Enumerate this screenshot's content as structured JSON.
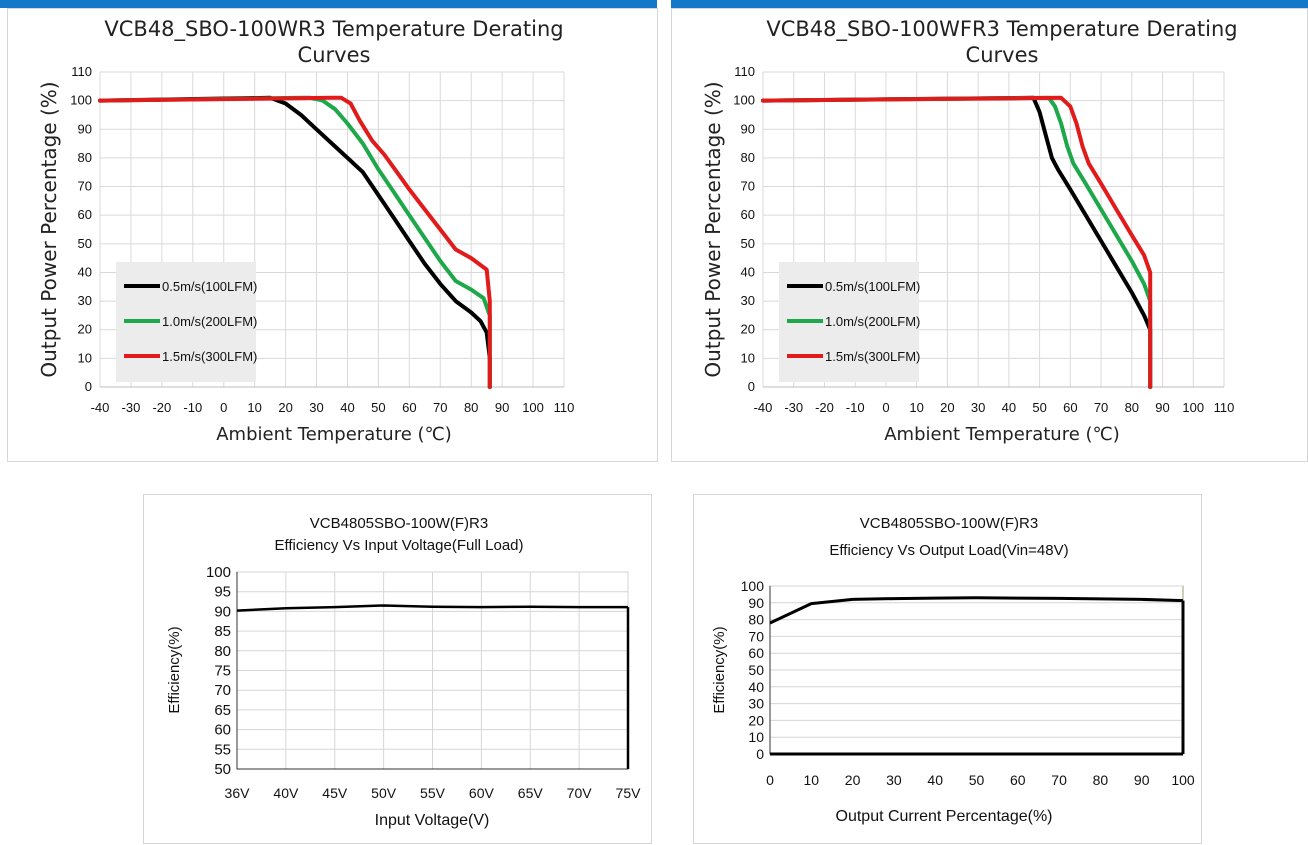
{
  "page": {
    "accent_color": "#1478c8"
  },
  "chart_data": [
    {
      "type": "line",
      "title": "VCB48_SBO-100WR3 Temperature Derating Curves",
      "title_lines": [
        "VCB48_SBO-100WR3 Temperature Derating",
        "Curves"
      ],
      "xlabel": "Ambient Temperature (℃)",
      "ylabel": "Output Power Percentage (%)",
      "xlim": [
        -40,
        110
      ],
      "ylim": [
        0,
        110
      ],
      "xticks": [
        -40,
        -30,
        -20,
        -10,
        0,
        10,
        20,
        30,
        40,
        50,
        60,
        70,
        80,
        90,
        100,
        110
      ],
      "yticks": [
        0,
        10,
        20,
        30,
        40,
        50,
        60,
        70,
        80,
        90,
        100,
        110
      ],
      "grid": true,
      "legend": "bottom-left",
      "series": [
        {
          "name": "0.5m/s(100LFM)",
          "color": "#000000",
          "x": [
            -40,
            15,
            20,
            25,
            30,
            35,
            40,
            45,
            50,
            55,
            60,
            65,
            70,
            75,
            80,
            83,
            85,
            86,
            86
          ],
          "y": [
            100,
            101,
            99,
            95,
            90,
            85,
            80,
            75,
            67,
            59,
            51,
            43,
            36,
            30,
            26,
            23,
            19,
            10,
            0
          ]
        },
        {
          "name": "1.0m/s(200LFM)",
          "color": "#1ea84a",
          "x": [
            -40,
            25,
            28,
            32,
            36,
            40,
            45,
            50,
            55,
            60,
            65,
            70,
            75,
            80,
            84,
            86,
            86
          ],
          "y": [
            100,
            101,
            101,
            100,
            97,
            92,
            85,
            76,
            68,
            60,
            52,
            44,
            37,
            34,
            31,
            25,
            0
          ]
        },
        {
          "name": "1.5m/s(300LFM)",
          "color": "#e11b1b",
          "x": [
            -40,
            35,
            38,
            41,
            44,
            48,
            52,
            56,
            60,
            65,
            70,
            75,
            80,
            85,
            86,
            86
          ],
          "y": [
            100,
            101,
            101,
            99,
            93,
            86,
            81,
            75,
            69,
            62,
            55,
            48,
            45,
            41,
            30,
            0
          ]
        }
      ]
    },
    {
      "type": "line",
      "title": "VCB48_SBO-100WFR3 Temperature Derating Curves",
      "title_lines": [
        "VCB48_SBO-100WFR3 Temperature Derating",
        "Curves"
      ],
      "xlabel": "Ambient Temperature (℃)",
      "ylabel": "Output Power Percentage (%)",
      "xlim": [
        -40,
        110
      ],
      "ylim": [
        0,
        110
      ],
      "xticks": [
        -40,
        -30,
        -20,
        -10,
        0,
        10,
        20,
        30,
        40,
        50,
        60,
        70,
        80,
        90,
        100,
        110
      ],
      "yticks": [
        0,
        10,
        20,
        30,
        40,
        50,
        60,
        70,
        80,
        90,
        100,
        110
      ],
      "grid": true,
      "legend": "bottom-left",
      "series": [
        {
          "name": "0.5m/s(100LFM)",
          "color": "#000000",
          "x": [
            -40,
            48,
            50,
            52,
            54,
            56,
            60,
            65,
            70,
            75,
            80,
            84,
            86,
            86
          ],
          "y": [
            100,
            101,
            96,
            88,
            80,
            76,
            69,
            60,
            51,
            42,
            33,
            25,
            20,
            0
          ]
        },
        {
          "name": "1.0m/s(200LFM)",
          "color": "#1ea84a",
          "x": [
            -40,
            53,
            55,
            57,
            59,
            61,
            65,
            70,
            75,
            80,
            84,
            86,
            86
          ],
          "y": [
            100,
            101,
            98,
            92,
            84,
            78,
            71,
            62,
            53,
            44,
            36,
            30,
            0
          ]
        },
        {
          "name": "1.5m/s(300LFM)",
          "color": "#e11b1b",
          "x": [
            -40,
            57,
            60,
            62,
            64,
            66,
            70,
            75,
            80,
            84,
            86,
            86
          ],
          "y": [
            100,
            101,
            98,
            92,
            84,
            78,
            71,
            62,
            53,
            46,
            40,
            0
          ]
        }
      ]
    },
    {
      "type": "line",
      "title": "VCB4805SBO-100W(F)R3",
      "subtitle": "Efficiency Vs Input Voltage(Full Load)",
      "xlabel": "Input Voltage(V)",
      "ylabel": "Efficiency(%)",
      "categories": [
        "36V",
        "40V",
        "45V",
        "50V",
        "55V",
        "60V",
        "65V",
        "70V",
        "75V"
      ],
      "ylim": [
        50,
        100
      ],
      "yticks": [
        50,
        55,
        60,
        65,
        70,
        75,
        80,
        85,
        90,
        95,
        100
      ],
      "grid": true,
      "series": [
        {
          "color": "#000000",
          "values": [
            90.2,
            90.8,
            91.1,
            91.5,
            91.2,
            91.1,
            91.2,
            91.1,
            91.1
          ]
        }
      ]
    },
    {
      "type": "line",
      "title": "VCB4805SBO-100W(F)R3",
      "subtitle": "Efficiency Vs Output Load(Vin=48V)",
      "xlabel": "Output Current Percentage(%)",
      "ylabel": "Efficiency(%)",
      "xlim": [
        0,
        100
      ],
      "ylim": [
        0,
        100
      ],
      "xticks": [
        0,
        10,
        20,
        30,
        40,
        50,
        60,
        70,
        80,
        90,
        100
      ],
      "yticks": [
        0,
        10,
        20,
        30,
        40,
        50,
        60,
        70,
        80,
        90,
        100
      ],
      "grid": true,
      "series": [
        {
          "color": "#000000",
          "x": [
            0,
            10,
            20,
            30,
            40,
            50,
            60,
            70,
            80,
            90,
            100
          ],
          "y": [
            78,
            89.5,
            92,
            92.5,
            92.8,
            93,
            92.8,
            92.6,
            92.3,
            92,
            91.3
          ]
        }
      ]
    }
  ]
}
